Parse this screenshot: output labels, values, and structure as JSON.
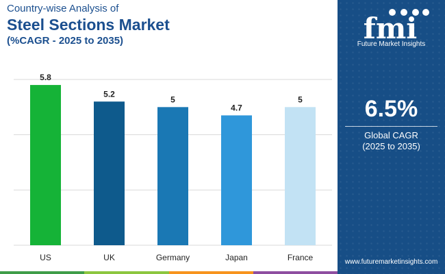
{
  "header": {
    "subtitle": "Country-wise Analysis of",
    "title": "Steel Sections Market",
    "cagr_range": "(%CAGR - 2025 to 2035)"
  },
  "chart_data": {
    "type": "bar",
    "categories": [
      "US",
      "UK",
      "Germany",
      "Japan",
      "France"
    ],
    "values": [
      5.8,
      5.2,
      5,
      4.7,
      5
    ],
    "value_labels": [
      "5.8",
      "5.2",
      "5",
      "4.7",
      "5"
    ],
    "bar_colors": [
      "#15b337",
      "#0e5a8c",
      "#1a78b4",
      "#2f97da",
      "#c2e2f4"
    ],
    "ylim": [
      0,
      6
    ],
    "gridlines": [
      0,
      2,
      4,
      6
    ],
    "grid": true,
    "legend": "none"
  },
  "side_panel": {
    "brand_letters": "fmi",
    "brand_name": "Future Market Insights",
    "stat_value": "6.5%",
    "stat_label": "Global CAGR",
    "stat_period": "(2025 to 2035)",
    "website": "www.futuremarketinsights.com"
  },
  "colors": {
    "title": "#1b4f8f",
    "panel_bg": "#174e86",
    "bottom_strip": [
      "#3f9d48",
      "#8cc63f",
      "#f7941d",
      "#8e4ea0"
    ]
  }
}
